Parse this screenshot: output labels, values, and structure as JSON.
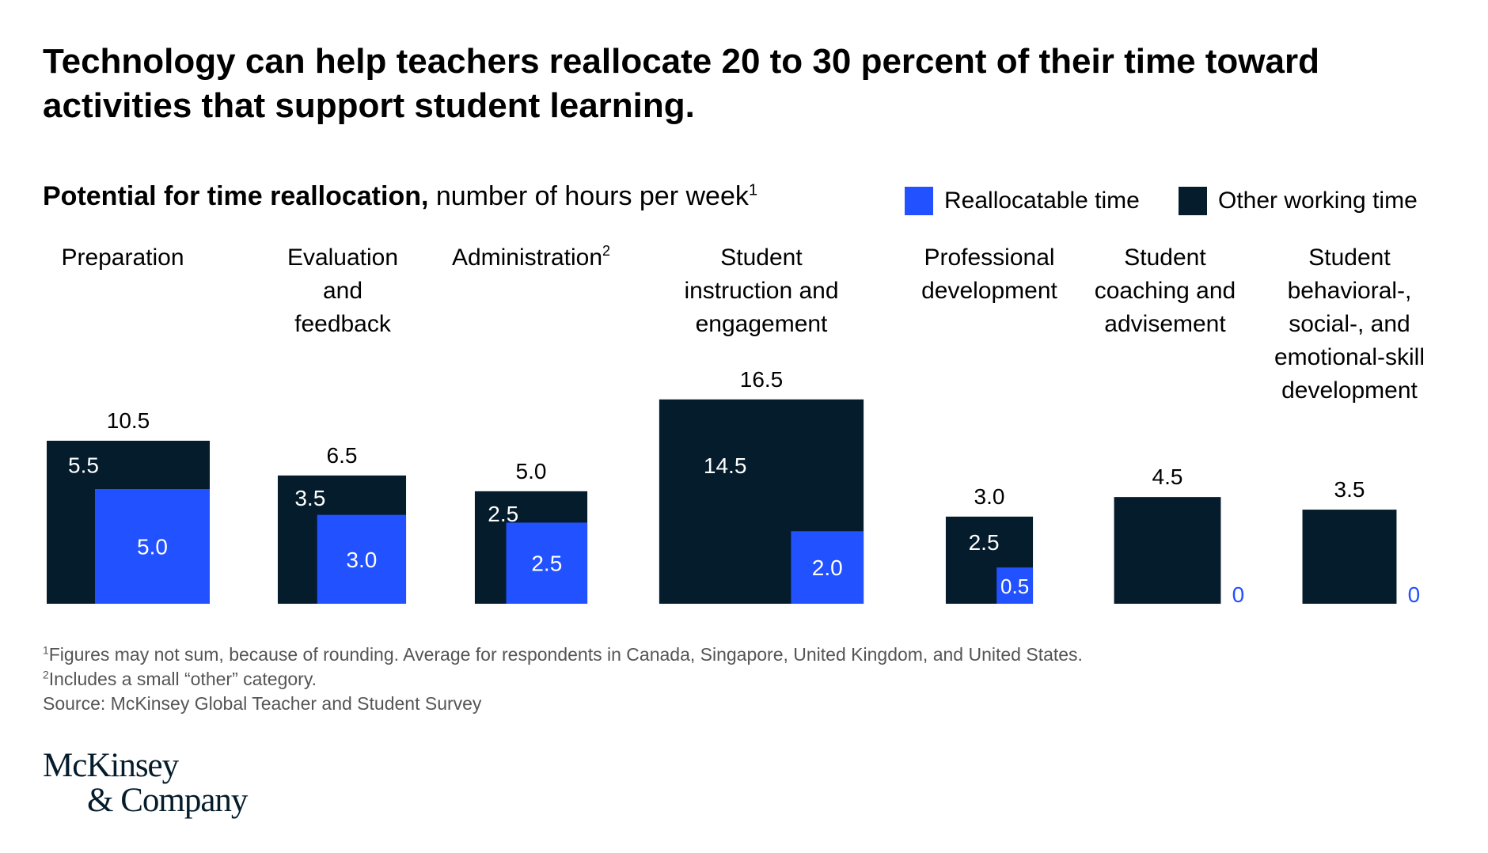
{
  "headline": "Technology can help teachers reallocate 20 to 30 percent of their time toward activities that support student learning.",
  "subtitle": {
    "bold": "Potential for time reallocation,",
    "rest": " number of hours per week",
    "footnote_mark": "1"
  },
  "legend": [
    {
      "label": "Reallocatable time",
      "color": "#2251ff"
    },
    {
      "label": "Other working time",
      "color": "#051c2c"
    }
  ],
  "colors": {
    "reallocatable": "#2251ff",
    "other": "#051c2c",
    "zero_label": "#2251ff"
  },
  "chart_data": {
    "type": "bar",
    "title": "Potential for time reallocation, number of hours per week",
    "categories": [
      "Preparation",
      "Evaluation and feedback",
      "Administration",
      "Student instruction and engagement",
      "Professional development",
      "Student coaching and advisement",
      "Student behavioral-, social-, and emotional-skill development"
    ],
    "category_lines": [
      [
        "Preparation"
      ],
      [
        "Evaluation",
        "and",
        "feedback"
      ],
      [
        "Administration"
      ],
      [
        "Student",
        "instruction and",
        "engagement"
      ],
      [
        "Professional",
        "development"
      ],
      [
        "Student",
        "coaching and",
        "advisement"
      ],
      [
        "Student",
        "behavioral-,",
        "social-, and",
        "emotional-skill",
        "development"
      ]
    ],
    "category_footnotes": [
      "",
      "",
      "2",
      "",
      "",
      "",
      ""
    ],
    "series": [
      {
        "name": "Reallocatable time",
        "values": [
          5.0,
          3.0,
          2.5,
          2.0,
          0.5,
          0,
          0
        ]
      },
      {
        "name": "Other working time",
        "values": [
          5.5,
          3.5,
          2.5,
          14.5,
          2.5,
          4.5,
          3.5
        ]
      }
    ],
    "totals": [
      10.5,
      6.5,
      5.0,
      16.5,
      3.0,
      4.5,
      3.5
    ],
    "labels": {
      "totals": [
        "10.5",
        "6.5",
        "5.0",
        "16.5",
        "3.0",
        "4.5",
        "3.5"
      ],
      "reallocatable": [
        "5.0",
        "3.0",
        "2.5",
        "2.0",
        "0.5",
        "0",
        "0"
      ],
      "other": [
        "5.5",
        "3.5",
        "2.5",
        "14.5",
        "2.5",
        "",
        ""
      ]
    }
  },
  "footnotes": [
    {
      "mark": "1",
      "text": "Figures may not sum, because of rounding. Average for respondents in Canada, Singapore, United Kingdom, and United States."
    },
    {
      "mark": "2",
      "text": "Includes a small “other” category."
    },
    {
      "mark": "",
      "text": "Source: McKinsey Global Teacher and Student Survey"
    }
  ],
  "logo": {
    "line1": "McKinsey",
    "line2": "& Company"
  }
}
